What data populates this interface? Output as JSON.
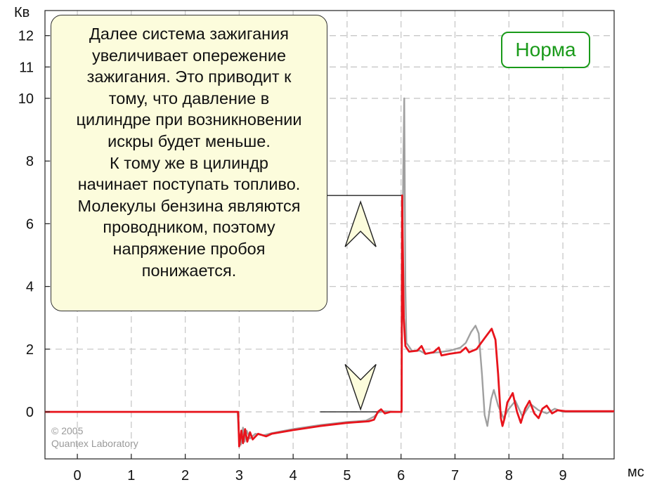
{
  "chart_data": {
    "type": "line",
    "ylabel": "Кв",
    "xlabel": "мс",
    "xlim": [
      -0.6,
      9.95
    ],
    "ylim": [
      -1.5,
      12.8
    ],
    "x_ticks": [
      "0",
      "1",
      "2",
      "3",
      "4",
      "5",
      "6",
      "7",
      "8",
      "9"
    ],
    "y_ticks": [
      "0",
      "2",
      "4",
      "6",
      "8",
      "10",
      "11",
      "12"
    ],
    "grid": true,
    "series": [
      {
        "color": "#a0a0a0",
        "points": [
          [
            -0.6,
            0
          ],
          [
            2.97,
            0
          ],
          [
            3.0,
            -0.9
          ],
          [
            3.03,
            -1.05
          ],
          [
            3.07,
            -0.5
          ],
          [
            3.1,
            -0.95
          ],
          [
            3.14,
            -0.6
          ],
          [
            3.2,
            -0.85
          ],
          [
            3.3,
            -0.7
          ],
          [
            3.45,
            -0.75
          ],
          [
            3.6,
            -0.68
          ],
          [
            4.0,
            -0.55
          ],
          [
            4.5,
            -0.42
          ],
          [
            5.0,
            -0.32
          ],
          [
            5.35,
            -0.28
          ],
          [
            5.5,
            -0.15
          ],
          [
            5.58,
            -0.02
          ],
          [
            5.7,
            0.02
          ],
          [
            5.95,
            0.0
          ],
          [
            6.01,
            0.0
          ],
          [
            6.02,
            4.0
          ],
          [
            6.04,
            7.5
          ],
          [
            6.06,
            10.0
          ],
          [
            6.08,
            4.0
          ],
          [
            6.1,
            2.2
          ],
          [
            6.2,
            1.95
          ],
          [
            6.35,
            1.95
          ],
          [
            6.45,
            1.85
          ],
          [
            6.55,
            1.88
          ],
          [
            6.7,
            1.9
          ],
          [
            6.9,
            1.95
          ],
          [
            7.1,
            2.05
          ],
          [
            7.2,
            2.2
          ],
          [
            7.3,
            2.55
          ],
          [
            7.38,
            2.75
          ],
          [
            7.44,
            2.5
          ],
          [
            7.5,
            1.2
          ],
          [
            7.55,
            -0.1
          ],
          [
            7.6,
            -0.45
          ],
          [
            7.67,
            0.4
          ],
          [
            7.72,
            0.7
          ],
          [
            7.8,
            0.2
          ],
          [
            7.9,
            -0.2
          ],
          [
            8.0,
            0.1
          ],
          [
            8.12,
            0.35
          ],
          [
            8.25,
            -0.15
          ],
          [
            8.4,
            0.25
          ],
          [
            8.55,
            0.05
          ],
          [
            8.7,
            -0.05
          ],
          [
            8.85,
            0.1
          ],
          [
            9.0,
            0.0
          ],
          [
            9.95,
            0.0
          ]
        ]
      },
      {
        "color": "#e8141c",
        "points": [
          [
            -0.6,
            0
          ],
          [
            2.98,
            0
          ],
          [
            3.0,
            -1.1
          ],
          [
            3.04,
            -0.6
          ],
          [
            3.07,
            -1.0
          ],
          [
            3.11,
            -0.55
          ],
          [
            3.15,
            -0.95
          ],
          [
            3.2,
            -0.65
          ],
          [
            3.25,
            -0.88
          ],
          [
            3.35,
            -0.7
          ],
          [
            3.5,
            -0.78
          ],
          [
            3.6,
            -0.7
          ],
          [
            4.0,
            -0.58
          ],
          [
            4.5,
            -0.45
          ],
          [
            5.0,
            -0.35
          ],
          [
            5.4,
            -0.3
          ],
          [
            5.5,
            -0.25
          ],
          [
            5.57,
            0.0
          ],
          [
            5.63,
            0.08
          ],
          [
            5.7,
            -0.05
          ],
          [
            5.8,
            0.0
          ],
          [
            6.01,
            0.0
          ],
          [
            6.02,
            6.9
          ],
          [
            6.05,
            3.0
          ],
          [
            6.08,
            2.1
          ],
          [
            6.15,
            1.92
          ],
          [
            6.3,
            1.95
          ],
          [
            6.38,
            2.1
          ],
          [
            6.45,
            1.85
          ],
          [
            6.6,
            1.9
          ],
          [
            6.7,
            2.05
          ],
          [
            6.75,
            1.8
          ],
          [
            6.9,
            1.85
          ],
          [
            7.1,
            1.9
          ],
          [
            7.2,
            2.05
          ],
          [
            7.26,
            1.9
          ],
          [
            7.4,
            2.0
          ],
          [
            7.55,
            2.35
          ],
          [
            7.68,
            2.65
          ],
          [
            7.75,
            2.3
          ],
          [
            7.8,
            1.2
          ],
          [
            7.85,
            -0.2
          ],
          [
            7.88,
            -0.45
          ],
          [
            7.92,
            -0.2
          ],
          [
            7.97,
            0.3
          ],
          [
            8.07,
            0.6
          ],
          [
            8.15,
            0.0
          ],
          [
            8.22,
            -0.35
          ],
          [
            8.3,
            0.1
          ],
          [
            8.38,
            0.35
          ],
          [
            8.47,
            -0.05
          ],
          [
            8.55,
            -0.2
          ],
          [
            8.62,
            0.1
          ],
          [
            8.7,
            0.2
          ],
          [
            8.8,
            -0.05
          ],
          [
            8.9,
            0.05
          ],
          [
            9.05,
            0.02
          ],
          [
            9.95,
            0.02
          ]
        ]
      }
    ],
    "annotations": [
      {
        "type": "hline",
        "y": 6.9,
        "x_from": 4.5,
        "x_to": 6.02
      },
      {
        "type": "hline",
        "y": 0.0,
        "x_from": 4.5,
        "x_to": 6.02
      },
      {
        "type": "arrow-up",
        "x": 5.25,
        "y_tip": 6.7
      },
      {
        "type": "arrow-down",
        "x": 5.25,
        "y_tip": 0.08
      }
    ]
  },
  "callout": {
    "lines": [
      "Далее система зажигания",
      "увеличивает опережение",
      "зажигания. Это приводит к",
      "тому, что давление в",
      "цилиндре при возникновении",
      "искры будет меньше.",
      "К тому же в цилиндр",
      "начинает поступать топливо.",
      "Молекулы бензина являются",
      "проводником, поэтому",
      "напряжение пробоя",
      "понижается."
    ]
  },
  "status_badge": "Норма",
  "status_color": "#1a9a1a",
  "copyright": {
    "line1": "© 2005",
    "line2": "Quantex Laboratory"
  }
}
